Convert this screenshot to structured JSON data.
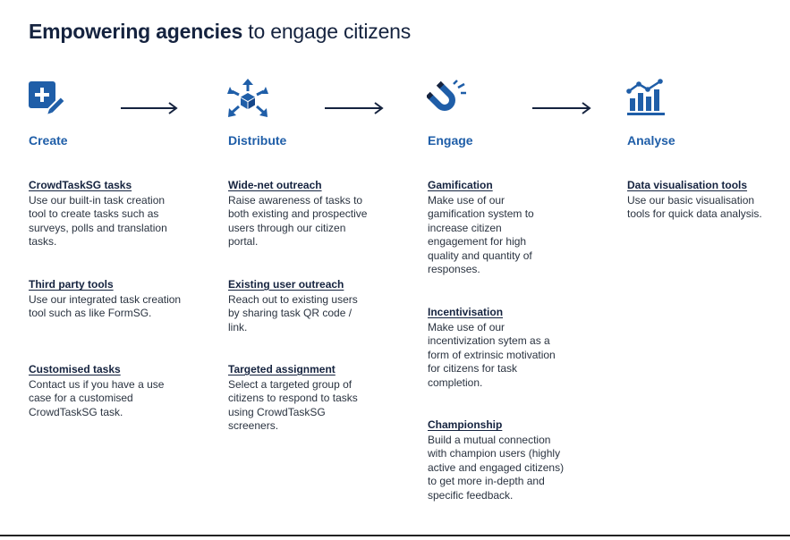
{
  "title": {
    "bold": "Empowering agencies",
    "rest": "to engage citizens"
  },
  "colors": {
    "accent": "#1f5ea8",
    "dark": "#15233f"
  },
  "stages": [
    {
      "label": "Create",
      "icon": "add-edit-icon",
      "items": [
        {
          "title": "CrowdTaskSG tasks",
          "desc": "Use our built-in task creation tool to create tasks such as surveys, polls and translation tasks."
        },
        {
          "title": "Third party tools",
          "desc": "Use our integrated task creation tool such as like FormSG."
        },
        {
          "title": "Customised tasks",
          "desc": "Contact us if you have a use case for a customised CrowdTaskSG task."
        }
      ]
    },
    {
      "label": "Distribute",
      "icon": "distribute-icon",
      "items": [
        {
          "title": "Wide-net outreach",
          "desc": "Raise awareness of tasks to both existing and prospective users through our citizen portal."
        },
        {
          "title": "Existing user outreach",
          "desc": "Reach out to existing users by sharing task QR code / link."
        },
        {
          "title": "Targeted assignment",
          "desc": "Select a targeted group of citizens to respond to tasks using CrowdTaskSG screeners."
        }
      ]
    },
    {
      "label": "Engage",
      "icon": "magnet-icon",
      "items": [
        {
          "title": "Gamification",
          "desc": "Make use of our gamification system to increase citizen engagement for high quality and quantity of responses."
        },
        {
          "title": "Incentivisation",
          "desc": "Make use of our incentivization sytem as a form of extrinsic motivation for citizens for task completion."
        },
        {
          "title": "Championship",
          "desc": "Build a mutual connection with champion users (highly active and engaged citizens) to get more in-depth and specific feedback."
        }
      ]
    },
    {
      "label": "Analyse",
      "icon": "bar-chart-icon",
      "items": [
        {
          "title": "Data visualisation tools",
          "desc": "Use our basic visualisation tools for quick data analysis."
        }
      ]
    }
  ]
}
